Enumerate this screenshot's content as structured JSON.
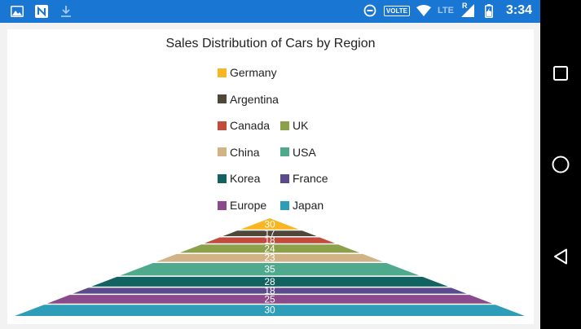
{
  "status_bar": {
    "time": "3:34",
    "network": "VOLTE",
    "signal": "LTE",
    "sim_label": "R",
    "background": "#1976d2"
  },
  "nav_bar": {
    "buttons": [
      "recent-apps",
      "home",
      "back"
    ]
  },
  "chart_data": {
    "type": "pyramid",
    "title": "Sales Distribution of Cars by Region",
    "legend_position": "top-center",
    "categories": [
      "Germany",
      "Argentina",
      "Canada",
      "UK",
      "China",
      "USA",
      "Korea",
      "France",
      "Europe",
      "Japan"
    ],
    "values": [
      30,
      17,
      18,
      24,
      23,
      35,
      28,
      18,
      25,
      30
    ],
    "colors": [
      "#f8b722",
      "#4e473a",
      "#c24b3c",
      "#8da04b",
      "#d2b386",
      "#4fa98d",
      "#136262",
      "#5b4b8e",
      "#8a4a8c",
      "#2e9db7"
    ],
    "data_labels_visible": true
  }
}
